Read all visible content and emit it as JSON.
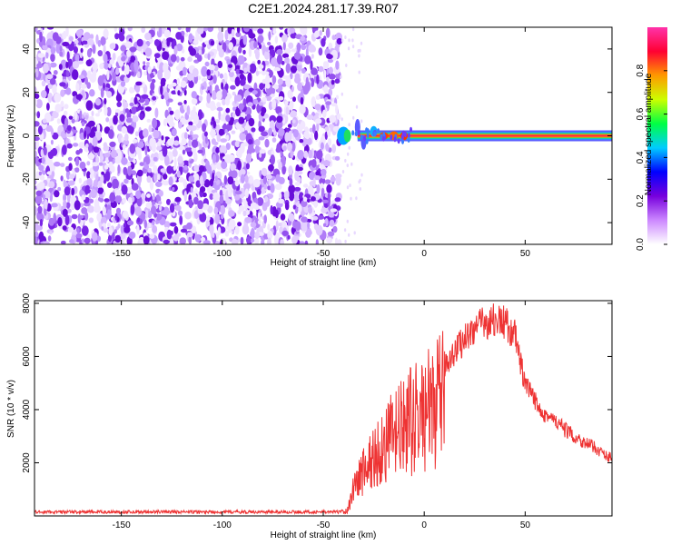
{
  "title": "C2E1.2024.281.17.39.R07",
  "chart_data": [
    {
      "type": "heatmap",
      "name": "spectrogram",
      "xlabel": "Height of straight line (km)",
      "ylabel": "Frequency (Hz)",
      "xlim": [
        -193,
        93
      ],
      "ylim": [
        -50,
        50
      ],
      "xticks": [
        -150,
        -100,
        -50,
        0,
        50
      ],
      "yticks": [
        -40,
        -20,
        0,
        20,
        40
      ],
      "noise_region_x": [
        -193,
        -42
      ],
      "signal_region_x": [
        -42,
        93
      ],
      "signal_frequency": 0,
      "colorbar": {
        "label": "Normalized spectral amplitude",
        "range": [
          0.0,
          1.0
        ],
        "ticks": [
          0.0,
          0.2,
          0.4,
          0.6,
          0.8
        ],
        "colors": [
          "#ffffff",
          "#cc88ff",
          "#7700dd",
          "#0000ff",
          "#00ccff",
          "#00ff44",
          "#ccff00",
          "#ff9900",
          "#ff0033",
          "#ff33aa"
        ]
      }
    },
    {
      "type": "line",
      "name": "snr",
      "xlabel": "Height of straight line (km)",
      "ylabel": "SNR (10 * v/v)",
      "xlim": [
        -193,
        93
      ],
      "ylim": [
        0,
        8100
      ],
      "xticks": [
        -150,
        -100,
        -50,
        0,
        50
      ],
      "yticks": [
        2000,
        4000,
        6000,
        8000
      ],
      "color": "#ee3333",
      "envelope": {
        "x": [
          -193,
          -42,
          -38,
          -35,
          -30,
          -25,
          -20,
          -15,
          -10,
          -5,
          0,
          5,
          10,
          15,
          20,
          25,
          30,
          35,
          40,
          45,
          50,
          55,
          60,
          65,
          70,
          75,
          80,
          85,
          90,
          93
        ],
        "y": [
          150,
          150,
          250,
          1400,
          2200,
          2800,
          3400,
          3900,
          4300,
          4700,
          5000,
          5300,
          5800,
          6300,
          6800,
          7200,
          7400,
          7500,
          7400,
          6900,
          5000,
          4400,
          3900,
          3600,
          3300,
          3000,
          2800,
          2600,
          2300,
          2250
        ]
      }
    }
  ]
}
